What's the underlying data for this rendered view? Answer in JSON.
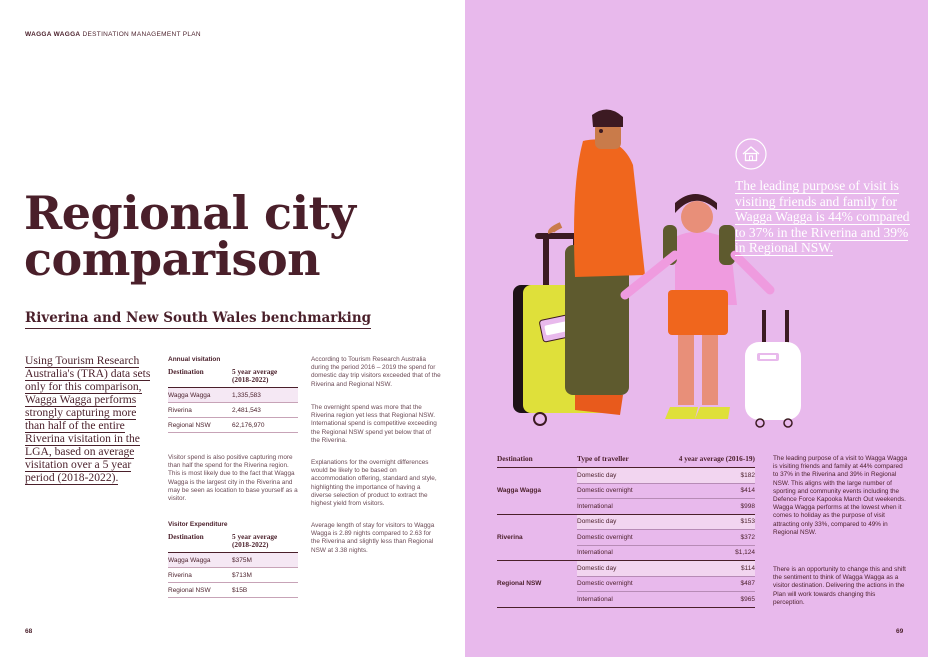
{
  "header": {
    "bold": "WAGGA WAGGA",
    "rest": " DESTINATION MANAGEMENT PLAN"
  },
  "title": {
    "line1": "Regional city",
    "line2": "comparison"
  },
  "subtitle": "Riverina and New South Wales benchmarking",
  "intro": "Using Tourism Research Australia's (TRA) data sets only for this comparison, Wagga Wagga performs strongly capturing more than half of the entire Riverina visitation in the LGA, based on average visitation over a 5 year period (2018-2022).",
  "annual_visitation": {
    "title": "Annual visitation",
    "col1": "Destination",
    "col2": "5 year average (2018-2022)",
    "rows": [
      {
        "dest": "Wagga Wagga",
        "value": "1,335,583"
      },
      {
        "dest": "Riverina",
        "value": "2,481,543"
      },
      {
        "dest": "Regional NSW",
        "value": "62,176,970"
      }
    ]
  },
  "visitor_spend_para": "Visitor spend is also positive capturing more than half the spend for the Riverina region. This is most likely due to the fact that Wagga Wagga is the largest city in the Riverina and may be seen as location to base yourself as a visitor.",
  "visitor_expenditure": {
    "title": "Visitor Expenditure",
    "col1": "Destination",
    "col2": "5 year average (2018-2022)",
    "rows": [
      {
        "dest": "Wagga Wagga",
        "value": "$375M"
      },
      {
        "dest": "Riverina",
        "value": "$713M"
      },
      {
        "dest": "Regional NSW",
        "value": "$15B"
      }
    ]
  },
  "col3": {
    "p1": "According to Tourism Research Australia during the period 2016 – 2019 the spend for domestic day trip visitors exceeded that of the Riverina and Regional NSW.",
    "p2": "The overnight spend was more that the Riverina region yet less that Regional NSW. International spend is competitive exceeding the Regional NSW spend yet below that of the Riverina.",
    "p3": "Explanations for the overnight differences would be likely to be based on accommodation offering, standard and style, highlighting the importance of having a diverse selection of product to extract the highest yield from visitors.",
    "p4": "Average length of stay for visitors to Wagga Wagga is 2.89 nights compared to 2.63 for the Riverina and slightly less than Regional NSW at 3.38 nights."
  },
  "page_left_num": "68",
  "page_right_num": "69",
  "quote": "The leading purpose of visit is visiting friends and family for Wagga Wagga is 44% compared to 37% in the Riverina and 39% in Regional NSW.",
  "spend_table": {
    "col1": "Destination",
    "col2": "Type of traveller",
    "col3": "4 year average (2016-19)",
    "groups": [
      {
        "dest": "Wagga Wagga",
        "rows": [
          {
            "type": "Domestic day",
            "value": "$182"
          },
          {
            "type": "Domestic overnight",
            "value": "$414"
          },
          {
            "type": "International",
            "value": "$998"
          }
        ]
      },
      {
        "dest": "Riverina",
        "rows": [
          {
            "type": "Domestic day",
            "value": "$153"
          },
          {
            "type": "Domestic overnight",
            "value": "$372"
          },
          {
            "type": "International",
            "value": "$1,124"
          }
        ]
      },
      {
        "dest": "Regional NSW",
        "rows": [
          {
            "type": "Domestic day",
            "value": "$114"
          },
          {
            "type": "Domestic overnight",
            "value": "$487"
          },
          {
            "type": "International",
            "value": "$965"
          }
        ]
      }
    ]
  },
  "right_col": {
    "p1": "The leading purpose of a visit to Wagga Wagga is visiting friends and family at 44% compared to 37% in the Riverina and 39% in Regional NSW. This aligns with the large number of sporting and community events including the Defence Force Kapooka March Out weekends. Wagga Wagga performs at the lowest when it comes to holiday as the purpose of visit attracting only 33%, compared to 49% in Regional NSW.",
    "p2": "There is an opportunity to change this and shift the sentiment to think of Wagga Wagga as a visitor destination. Delivering the actions in the Plan will work towards changing this perception."
  },
  "colors": {
    "ink": "#4a1f2a",
    "panel": "#e8b9ec"
  },
  "icons": [
    "house-icon"
  ]
}
